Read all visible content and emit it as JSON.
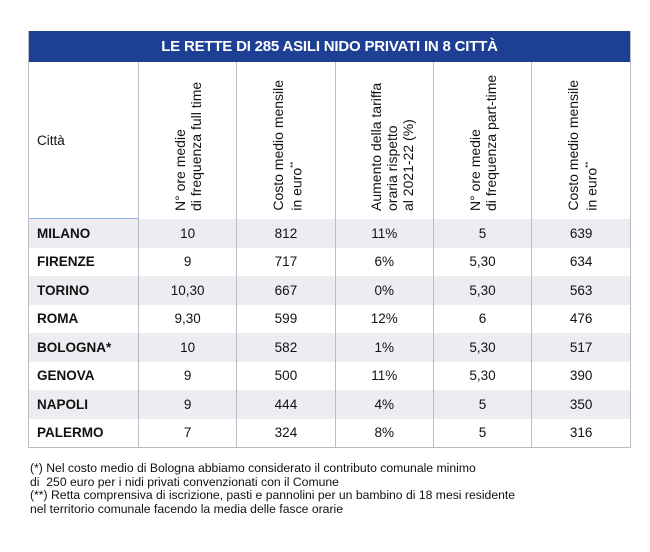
{
  "chart_data": {
    "type": "table",
    "title": "LE RETTE DI 285 ASILI NIDO PRIVATI IN 8 CITTÀ",
    "columns": [
      {
        "label": "Città"
      },
      {
        "label": "N° ore medie di frequenza full time",
        "lines": [
          "N° ore medie",
          "di frequenza full time"
        ]
      },
      {
        "label": "Costo medio mensile in euro**",
        "lines": [
          "Costo medio mensile",
          "in euro"
        ],
        "sup": "**"
      },
      {
        "label": "Aumento della tariffa oraria rispetto al 2021-22 (%)",
        "lines": [
          "Aumento della tariffa",
          "oraria rispetto",
          "al 2021-22 (%)"
        ]
      },
      {
        "label": "N° ore medie di frequenza part-time",
        "lines": [
          "N° ore medie",
          "di frequenza part-time"
        ]
      },
      {
        "label": "Costo medio mensile in euro**",
        "lines": [
          "Costo medio mensile",
          "in euro"
        ],
        "sup": "**"
      }
    ],
    "rows": [
      [
        "MILANO",
        "10",
        "812",
        "11%",
        "5",
        "639"
      ],
      [
        "FIRENZE",
        "9",
        "717",
        "6%",
        "5,30",
        "634"
      ],
      [
        "TORINO",
        "10,30",
        "667",
        "0%",
        "5,30",
        "563"
      ],
      [
        "ROMA",
        "9,30",
        "599",
        "12%",
        "6",
        "476"
      ],
      [
        "BOLOGNA*",
        "10",
        "582",
        "1%",
        "5,30",
        "517"
      ],
      [
        "GENOVA",
        "9",
        "500",
        "11%",
        "5,30",
        "390"
      ],
      [
        "NAPOLI",
        "9",
        "444",
        "4%",
        "5",
        "350"
      ],
      [
        "PALERMO",
        "7",
        "324",
        "8%",
        "5",
        "316"
      ]
    ]
  },
  "notes": [
    "(*) Nel costo medio di Bologna abbiamo considerato il contributo comunale minimo",
    "di  250 euro per i nidi privati convenzionati con il Comune",
    "(**) Retta comprensiva di iscrizione, pasti e pannolini per un bambino di 18 mesi residente",
    "nel territorio comunale facendo la media delle fasce orarie"
  ],
  "colors": {
    "title_bg": "#1d3f94",
    "row_alt": "#ecedf1",
    "grid": "#b9bcc4"
  }
}
